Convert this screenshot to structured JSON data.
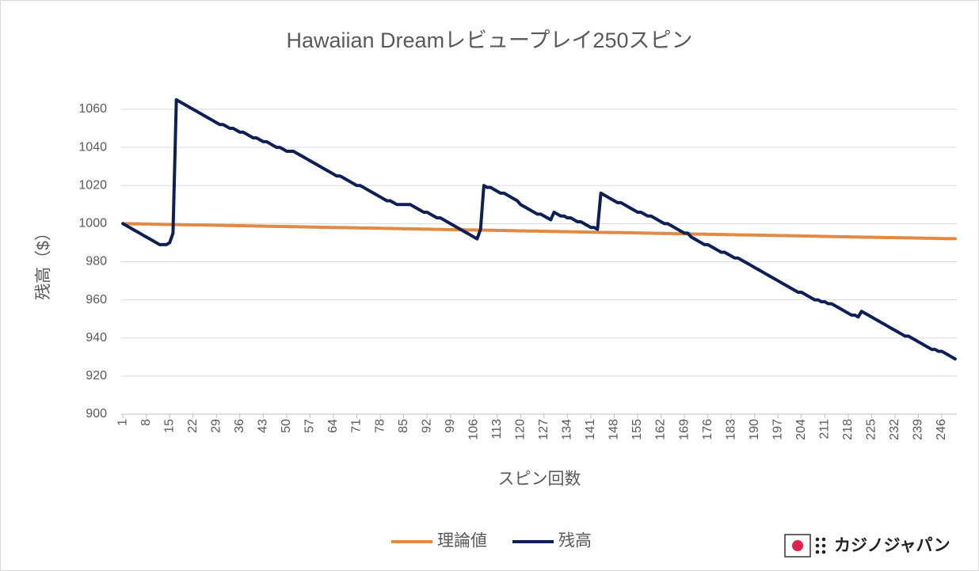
{
  "chart_data": {
    "type": "line",
    "title": "Hawaiian Dreamレビュープレイ250スピン",
    "x_label": "スピン回数",
    "y_label": "残高（$）",
    "watermark": "カジノジャパン",
    "legend_position": "bottom",
    "grid": true,
    "xlim": [
      0.5,
      250.5
    ],
    "xticks": [
      1,
      8,
      15,
      22,
      29,
      36,
      43,
      50,
      57,
      64,
      71,
      78,
      85,
      92,
      99,
      106,
      113,
      120,
      127,
      134,
      141,
      148,
      155,
      162,
      169,
      176,
      183,
      190,
      197,
      204,
      211,
      218,
      225,
      232,
      239,
      246
    ],
    "ylim": [
      900,
      1060
    ],
    "yticks": [
      900,
      920,
      940,
      960,
      980,
      1000,
      1020,
      1040,
      1060
    ],
    "x": [
      1,
      2,
      3,
      4,
      5,
      6,
      7,
      8,
      9,
      10,
      11,
      12,
      13,
      14,
      15,
      16,
      17,
      18,
      19,
      20,
      21,
      22,
      23,
      24,
      25,
      26,
      27,
      28,
      29,
      30,
      31,
      32,
      33,
      34,
      35,
      36,
      37,
      38,
      39,
      40,
      41,
      42,
      43,
      44,
      45,
      46,
      47,
      48,
      49,
      50,
      51,
      52,
      53,
      54,
      55,
      56,
      57,
      58,
      59,
      60,
      61,
      62,
      63,
      64,
      65,
      66,
      67,
      68,
      69,
      70,
      71,
      72,
      73,
      74,
      75,
      76,
      77,
      78,
      79,
      80,
      81,
      82,
      83,
      84,
      85,
      86,
      87,
      88,
      89,
      90,
      91,
      92,
      93,
      94,
      95,
      96,
      97,
      98,
      99,
      100,
      101,
      102,
      103,
      104,
      105,
      106,
      107,
      108,
      109,
      110,
      111,
      112,
      113,
      114,
      115,
      116,
      117,
      118,
      119,
      120,
      121,
      122,
      123,
      124,
      125,
      126,
      127,
      128,
      129,
      130,
      131,
      132,
      133,
      134,
      135,
      136,
      137,
      138,
      139,
      140,
      141,
      142,
      143,
      144,
      145,
      146,
      147,
      148,
      149,
      150,
      151,
      152,
      153,
      154,
      155,
      156,
      157,
      158,
      159,
      160,
      161,
      162,
      163,
      164,
      165,
      166,
      167,
      168,
      169,
      170,
      171,
      172,
      173,
      174,
      175,
      176,
      177,
      178,
      179,
      180,
      181,
      182,
      183,
      184,
      185,
      186,
      187,
      188,
      189,
      190,
      191,
      192,
      193,
      194,
      195,
      196,
      197,
      198,
      199,
      200,
      201,
      202,
      203,
      204,
      205,
      206,
      207,
      208,
      209,
      210,
      211,
      212,
      213,
      214,
      215,
      216,
      217,
      218,
      219,
      220,
      221,
      222,
      223,
      224,
      225,
      226,
      227,
      228,
      229,
      230,
      231,
      232,
      233,
      234,
      235,
      236,
      237,
      238,
      239,
      240,
      241,
      242,
      243,
      244,
      245,
      246,
      247,
      248,
      249,
      250
    ],
    "series": [
      {
        "name": "理論値",
        "color": "#E08A45",
        "values": [
          1000,
          1000,
          1000,
          999.9,
          999.9,
          999.9,
          999.8,
          999.8,
          999.8,
          999.7,
          999.7,
          999.7,
          999.6,
          999.6,
          999.6,
          999.5,
          999.5,
          999.5,
          999.4,
          999.4,
          999.4,
          999.3,
          999.3,
          999.3,
          999.3,
          999.2,
          999.2,
          999.2,
          999.1,
          999.1,
          999.1,
          999,
          999,
          999,
          998.9,
          998.9,
          998.9,
          998.8,
          998.8,
          998.8,
          998.7,
          998.7,
          998.7,
          998.6,
          998.6,
          998.6,
          998.5,
          998.5,
          998.5,
          998.5,
          998.4,
          998.4,
          998.4,
          998.3,
          998.3,
          998.3,
          998.2,
          998.2,
          998.2,
          998.1,
          998.1,
          998.1,
          998,
          998,
          998,
          997.9,
          997.9,
          997.9,
          997.8,
          997.8,
          997.8,
          997.7,
          997.7,
          997.7,
          997.7,
          997.6,
          997.6,
          997.6,
          997.5,
          997.5,
          997.5,
          997.4,
          997.4,
          997.4,
          997.3,
          997.3,
          997.3,
          997.2,
          997.2,
          997.2,
          997.1,
          997.1,
          997.1,
          997,
          997,
          997,
          996.9,
          996.9,
          996.9,
          996.9,
          996.8,
          996.8,
          996.8,
          996.7,
          996.7,
          996.7,
          996.6,
          996.6,
          996.6,
          996.5,
          996.5,
          996.5,
          996.4,
          996.4,
          996.4,
          996.3,
          996.3,
          996.3,
          996.2,
          996.2,
          996.2,
          996.1,
          996.1,
          996.1,
          996.1,
          996,
          996,
          996,
          995.9,
          995.9,
          995.9,
          995.8,
          995.8,
          995.8,
          995.7,
          995.7,
          995.7,
          995.6,
          995.6,
          995.6,
          995.5,
          995.5,
          995.5,
          995.4,
          995.4,
          995.4,
          995.3,
          995.3,
          995.3,
          995.3,
          995.2,
          995.2,
          995.2,
          995.1,
          995.1,
          995.1,
          995,
          995,
          995,
          994.9,
          994.9,
          994.9,
          994.8,
          994.8,
          994.8,
          994.7,
          994.7,
          994.7,
          994.6,
          994.6,
          994.6,
          994.5,
          994.5,
          994.5,
          994.5,
          994.4,
          994.4,
          994.4,
          994.3,
          994.3,
          994.3,
          994.2,
          994.2,
          994.2,
          994.1,
          994.1,
          994.1,
          994,
          994,
          994,
          993.9,
          993.9,
          993.9,
          993.8,
          993.8,
          993.8,
          993.7,
          993.7,
          993.7,
          993.7,
          993.6,
          993.6,
          993.6,
          993.5,
          993.5,
          993.5,
          993.4,
          993.4,
          993.4,
          993.3,
          993.3,
          993.3,
          993.2,
          993.2,
          993.2,
          993.1,
          993.1,
          993.1,
          993,
          993,
          993,
          992.9,
          992.9,
          992.9,
          992.9,
          992.8,
          992.8,
          992.8,
          992.7,
          992.7,
          992.7,
          992.6,
          992.6,
          992.6,
          992.5,
          992.5,
          992.5,
          992.4,
          992.4,
          992.4,
          992.3,
          992.3,
          992.3,
          992.2,
          992.2,
          992.2,
          992.1,
          992.1,
          992.1,
          992.1
        ]
      },
      {
        "name": "残高",
        "color": "#0E1F55",
        "values": [
          1000,
          999,
          998,
          997,
          996,
          995,
          994,
          993,
          992,
          991,
          990,
          989,
          989,
          989,
          990,
          995,
          1065,
          1064,
          1063,
          1062,
          1061,
          1060,
          1059,
          1058,
          1057,
          1056,
          1055,
          1054,
          1053,
          1052,
          1052,
          1051,
          1050,
          1050,
          1049,
          1048,
          1048,
          1047,
          1046,
          1045,
          1045,
          1044,
          1043,
          1043,
          1042,
          1041,
          1040,
          1040,
          1039,
          1038,
          1038,
          1038,
          1037,
          1036,
          1035,
          1034,
          1033,
          1032,
          1031,
          1030,
          1029,
          1028,
          1027,
          1026,
          1025,
          1025,
          1024,
          1023,
          1022,
          1021,
          1020,
          1020,
          1019,
          1018,
          1017,
          1016,
          1015,
          1014,
          1013,
          1012,
          1012,
          1011,
          1010,
          1010,
          1010,
          1010,
          1010,
          1009,
          1008,
          1007,
          1006,
          1006,
          1005,
          1004,
          1003,
          1003,
          1002,
          1001,
          1000,
          999,
          998,
          997,
          996,
          995,
          994,
          993,
          992,
          997,
          1020,
          1019,
          1019,
          1018,
          1017,
          1016,
          1016,
          1015,
          1014,
          1013,
          1012,
          1010,
          1009,
          1008,
          1007,
          1006,
          1005,
          1005,
          1004,
          1003,
          1002,
          1006,
          1005,
          1004,
          1004,
          1003,
          1003,
          1002,
          1001,
          1001,
          1000,
          999,
          998,
          998,
          997,
          1016,
          1015,
          1014,
          1013,
          1012,
          1011,
          1011,
          1010,
          1009,
          1008,
          1007,
          1006,
          1006,
          1005,
          1004,
          1004,
          1003,
          1002,
          1001,
          1000,
          1000,
          999,
          998,
          997,
          996,
          995,
          995,
          993,
          992,
          991,
          990,
          989,
          989,
          988,
          987,
          986,
          985,
          985,
          984,
          983,
          982,
          982,
          981,
          980,
          979,
          978,
          977,
          976,
          975,
          974,
          973,
          972,
          971,
          970,
          969,
          968,
          967,
          966,
          965,
          964,
          964,
          963,
          962,
          961,
          960,
          960,
          959,
          959,
          958,
          958,
          957,
          956,
          955,
          954,
          953,
          952,
          952,
          951,
          954,
          953,
          952,
          951,
          950,
          949,
          948,
          947,
          946,
          945,
          944,
          943,
          942,
          941,
          941,
          940,
          939,
          938,
          937,
          936,
          935,
          934,
          934,
          933,
          933,
          932,
          931,
          930,
          929
        ]
      }
    ]
  }
}
